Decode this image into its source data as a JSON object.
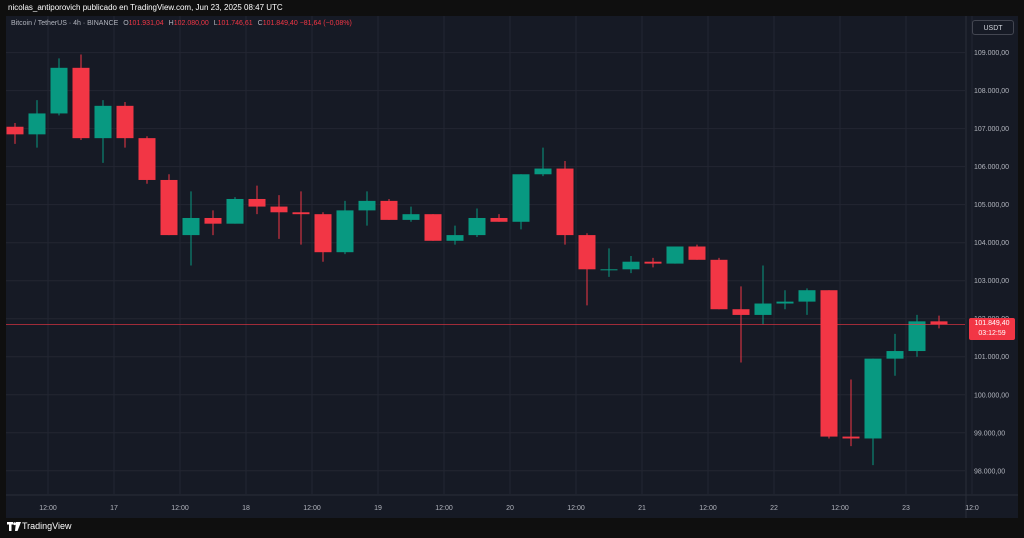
{
  "header": {
    "publisher_text": "nicolas_antiporovich publicado en TradingView.com, Jun 23, 2025 08:47 UTC"
  },
  "legend": {
    "symbol": "Bitcoin / TetherUS · 4h · BINANCE",
    "o_label": "O",
    "o_value": "101.931,04",
    "h_label": "H",
    "h_value": "102.080,00",
    "l_label": "L",
    "l_value": "101.746,61",
    "c_label": "C",
    "c_value": "101.849,40",
    "change": "−81,64 (−0,08%)"
  },
  "currency_button": "USDT",
  "price_tag": {
    "price": "101.849,40",
    "countdown": "03:12:59"
  },
  "footer": {
    "brand": "TradingView"
  },
  "colors": {
    "up": "#089981",
    "down": "#f23645",
    "background": "#161a25",
    "grid": "#232632",
    "text": "#b2b5be"
  },
  "chart_data": {
    "type": "candlestick",
    "title": "Bitcoin / TetherUS · 4h · BINANCE",
    "ylim": [
      97600,
      109700
    ],
    "y_ticks": [
      {
        "value": 109000,
        "label": "109.000,00"
      },
      {
        "value": 108000,
        "label": "108.000,00"
      },
      {
        "value": 107000,
        "label": "107.000,00"
      },
      {
        "value": 106000,
        "label": "106.000,00"
      },
      {
        "value": 105000,
        "label": "105.000,00"
      },
      {
        "value": 104000,
        "label": "104.000,00"
      },
      {
        "value": 103000,
        "label": "103.000,00"
      },
      {
        "value": 102000,
        "label": "102.000,00"
      },
      {
        "value": 101000,
        "label": "101.000,00"
      },
      {
        "value": 100000,
        "label": "100.000,00"
      },
      {
        "value": 99000,
        "label": "99.000,00"
      },
      {
        "value": 98000,
        "label": "98.000,00"
      }
    ],
    "x_ticks": [
      {
        "index": 1.5,
        "label": "12:00"
      },
      {
        "index": 4.5,
        "label": "17"
      },
      {
        "index": 7.5,
        "label": "12:00"
      },
      {
        "index": 10.5,
        "label": "18"
      },
      {
        "index": 13.5,
        "label": "12:00"
      },
      {
        "index": 16.5,
        "label": "19"
      },
      {
        "index": 19.5,
        "label": "12:00"
      },
      {
        "index": 22.5,
        "label": "20"
      },
      {
        "index": 25.5,
        "label": "12:00"
      },
      {
        "index": 28.5,
        "label": "21"
      },
      {
        "index": 31.5,
        "label": "12:00"
      },
      {
        "index": 34.5,
        "label": "22"
      },
      {
        "index": 37.5,
        "label": "12:00"
      },
      {
        "index": 40.5,
        "label": "23"
      },
      {
        "index": 43.5,
        "label": "12:0"
      }
    ],
    "last_price": 101849.4,
    "candles": [
      {
        "o": 107050,
        "h": 107150,
        "l": 106600,
        "c": 106850
      },
      {
        "o": 106850,
        "h": 107750,
        "l": 106500,
        "c": 107400
      },
      {
        "o": 107400,
        "h": 108850,
        "l": 107350,
        "c": 108600
      },
      {
        "o": 108600,
        "h": 108950,
        "l": 106700,
        "c": 106750
      },
      {
        "o": 106750,
        "h": 107750,
        "l": 106100,
        "c": 107600
      },
      {
        "o": 107600,
        "h": 107700,
        "l": 106500,
        "c": 106750
      },
      {
        "o": 106750,
        "h": 106800,
        "l": 105550,
        "c": 105650
      },
      {
        "o": 105650,
        "h": 105800,
        "l": 104200,
        "c": 104200
      },
      {
        "o": 104200,
        "h": 105350,
        "l": 103400,
        "c": 104650
      },
      {
        "o": 104650,
        "h": 104850,
        "l": 104200,
        "c": 104500
      },
      {
        "o": 104500,
        "h": 105200,
        "l": 104500,
        "c": 105150
      },
      {
        "o": 105150,
        "h": 105500,
        "l": 104750,
        "c": 104950
      },
      {
        "o": 104950,
        "h": 105250,
        "l": 104100,
        "c": 104800
      },
      {
        "o": 104800,
        "h": 105350,
        "l": 103950,
        "c": 104750
      },
      {
        "o": 104750,
        "h": 104800,
        "l": 103500,
        "c": 103750
      },
      {
        "o": 103750,
        "h": 105100,
        "l": 103700,
        "c": 104850
      },
      {
        "o": 104850,
        "h": 105350,
        "l": 104450,
        "c": 105100
      },
      {
        "o": 105100,
        "h": 105150,
        "l": 104600,
        "c": 104600
      },
      {
        "o": 104600,
        "h": 104950,
        "l": 104550,
        "c": 104750
      },
      {
        "o": 104750,
        "h": 104750,
        "l": 104050,
        "c": 104050
      },
      {
        "o": 104050,
        "h": 104450,
        "l": 103950,
        "c": 104200
      },
      {
        "o": 104200,
        "h": 104900,
        "l": 104150,
        "c": 104650
      },
      {
        "o": 104650,
        "h": 104750,
        "l": 104550,
        "c": 104550
      },
      {
        "o": 104550,
        "h": 105800,
        "l": 104350,
        "c": 105800
      },
      {
        "o": 105800,
        "h": 106500,
        "l": 105750,
        "c": 105950
      },
      {
        "o": 105950,
        "h": 106150,
        "l": 103950,
        "c": 104200
      },
      {
        "o": 104200,
        "h": 104250,
        "l": 102350,
        "c": 103300
      },
      {
        "o": 103300,
        "h": 103850,
        "l": 103100,
        "c": 103300
      },
      {
        "o": 103300,
        "h": 103650,
        "l": 103200,
        "c": 103500
      },
      {
        "o": 103500,
        "h": 103600,
        "l": 103350,
        "c": 103450
      },
      {
        "o": 103450,
        "h": 103900,
        "l": 103450,
        "c": 103900
      },
      {
        "o": 103900,
        "h": 103950,
        "l": 103550,
        "c": 103550
      },
      {
        "o": 103550,
        "h": 103600,
        "l": 102250,
        "c": 102250
      },
      {
        "o": 102250,
        "h": 102850,
        "l": 100850,
        "c": 102100
      },
      {
        "o": 102100,
        "h": 103400,
        "l": 101850,
        "c": 102400
      },
      {
        "o": 102400,
        "h": 102750,
        "l": 102250,
        "c": 102450
      },
      {
        "o": 102450,
        "h": 102800,
        "l": 102100,
        "c": 102750
      },
      {
        "o": 102750,
        "h": 102750,
        "l": 98850,
        "c": 98900
      },
      {
        "o": 98900,
        "h": 100400,
        "l": 98650,
        "c": 98850
      },
      {
        "o": 98850,
        "h": 100950,
        "l": 98150,
        "c": 100950
      },
      {
        "o": 100950,
        "h": 101600,
        "l": 100500,
        "c": 101150
      },
      {
        "o": 101150,
        "h": 102100,
        "l": 101000,
        "c": 101931
      },
      {
        "o": 101931,
        "h": 102080,
        "l": 101747,
        "c": 101849
      }
    ]
  }
}
